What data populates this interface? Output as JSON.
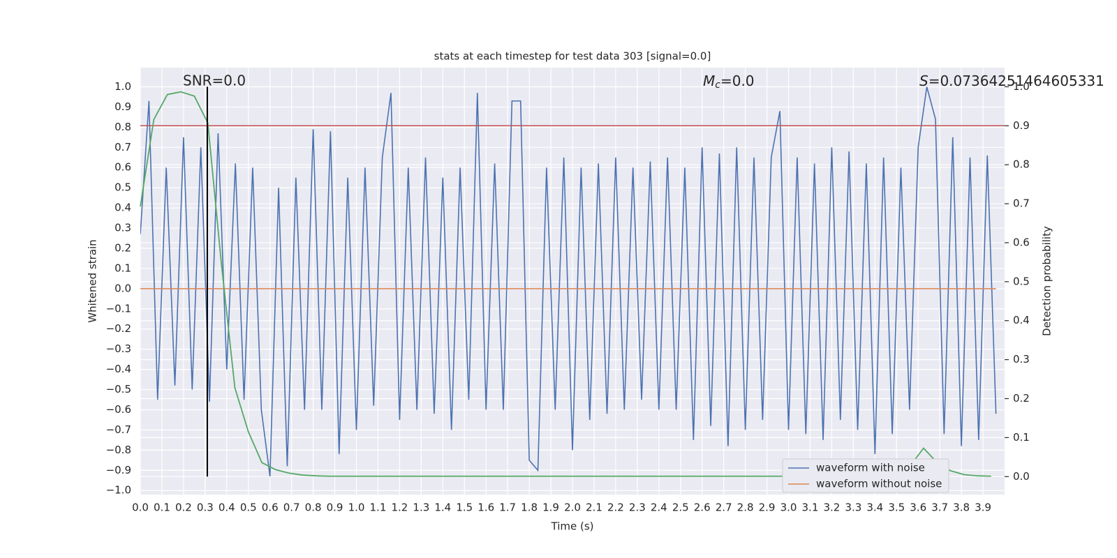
{
  "chart_data": {
    "type": "line",
    "title": "stats at each timestep for test data 303 [signal=0.0]",
    "x_label": "Time (s)",
    "y_label": "Whitened strain",
    "y2_label": "Detection probability",
    "background": "#eaeaf2",
    "grid": true,
    "legend_position": "lower right",
    "xlim": [
      0,
      4.0
    ],
    "ylim": [
      -1.02,
      1.095
    ],
    "y2lim": [
      -0.046,
      1.049
    ],
    "xticks": [
      {
        "value": 0,
        "label": "0.0"
      },
      {
        "value": 0.1,
        "label": "0.1"
      },
      {
        "value": 0.2,
        "label": "0.2"
      },
      {
        "value": 0.3,
        "label": "0.3"
      },
      {
        "value": 0.4,
        "label": "0.4"
      },
      {
        "value": 0.5,
        "label": "0.5"
      },
      {
        "value": 0.6,
        "label": "0.6"
      },
      {
        "value": 0.7,
        "label": "0.7"
      },
      {
        "value": 0.8,
        "label": "0.8"
      },
      {
        "value": 0.9,
        "label": "0.9"
      },
      {
        "value": 1.0,
        "label": "1.0"
      },
      {
        "value": 1.1,
        "label": "1.1"
      },
      {
        "value": 1.2,
        "label": "1.2"
      },
      {
        "value": 1.3,
        "label": "1.3"
      },
      {
        "value": 1.4,
        "label": "1.4"
      },
      {
        "value": 1.5,
        "label": "1.5"
      },
      {
        "value": 1.6,
        "label": "1.6"
      },
      {
        "value": 1.7,
        "label": "1.7"
      },
      {
        "value": 1.8,
        "label": "1.8"
      },
      {
        "value": 1.9,
        "label": "1.9"
      },
      {
        "value": 2.0,
        "label": "2.0"
      },
      {
        "value": 2.1,
        "label": "2.1"
      },
      {
        "value": 2.2,
        "label": "2.2"
      },
      {
        "value": 2.3,
        "label": "2.3"
      },
      {
        "value": 2.4,
        "label": "2.4"
      },
      {
        "value": 2.5,
        "label": "2.5"
      },
      {
        "value": 2.6,
        "label": "2.6"
      },
      {
        "value": 2.7,
        "label": "2.7"
      },
      {
        "value": 2.8,
        "label": "2.8"
      },
      {
        "value": 2.9,
        "label": "2.9"
      },
      {
        "value": 3.0,
        "label": "3.0"
      },
      {
        "value": 3.1,
        "label": "3.1"
      },
      {
        "value": 3.2,
        "label": "3.2"
      },
      {
        "value": 3.3,
        "label": "3.3"
      },
      {
        "value": 3.4,
        "label": "3.4"
      },
      {
        "value": 3.5,
        "label": "3.5"
      },
      {
        "value": 3.6,
        "label": "3.6"
      },
      {
        "value": 3.7,
        "label": "3.7"
      },
      {
        "value": 3.8,
        "label": "3.8"
      },
      {
        "value": 3.9,
        "label": "3.9"
      }
    ],
    "yticks": [
      {
        "value": -1.0,
        "label": "−1.0"
      },
      {
        "value": -0.9,
        "label": "−0.9"
      },
      {
        "value": -0.8,
        "label": "−0.8"
      },
      {
        "value": -0.7,
        "label": "−0.7"
      },
      {
        "value": -0.6,
        "label": "−0.6"
      },
      {
        "value": -0.5,
        "label": "−0.5"
      },
      {
        "value": -0.4,
        "label": "−0.4"
      },
      {
        "value": -0.3,
        "label": "−0.3"
      },
      {
        "value": -0.2,
        "label": "−0.2"
      },
      {
        "value": -0.1,
        "label": "−0.1"
      },
      {
        "value": 0,
        "label": "0.0"
      },
      {
        "value": 0.1,
        "label": "0.1"
      },
      {
        "value": 0.2,
        "label": "0.2"
      },
      {
        "value": 0.3,
        "label": "0.3"
      },
      {
        "value": 0.4,
        "label": "0.4"
      },
      {
        "value": 0.5,
        "label": "0.5"
      },
      {
        "value": 0.6,
        "label": "0.6"
      },
      {
        "value": 0.7,
        "label": "0.7"
      },
      {
        "value": 0.8,
        "label": "0.8"
      },
      {
        "value": 0.9,
        "label": "0.9"
      },
      {
        "value": 1.0,
        "label": "1.0"
      }
    ],
    "y2ticks": [
      {
        "value": 0,
        "label": "0.0"
      },
      {
        "value": 0.1,
        "label": "0.1"
      },
      {
        "value": 0.2,
        "label": "0.2"
      },
      {
        "value": 0.3,
        "label": "0.3"
      },
      {
        "value": 0.4,
        "label": "0.4"
      },
      {
        "value": 0.5,
        "label": "0.5"
      },
      {
        "value": 0.6,
        "label": "0.6"
      },
      {
        "value": 0.7,
        "label": "0.7"
      },
      {
        "value": 0.8,
        "label": "0.8"
      },
      {
        "value": 0.9,
        "label": "0.9"
      },
      {
        "value": 1.0,
        "label": "1.0"
      }
    ],
    "x": [
      0,
      0.04,
      0.08,
      0.12,
      0.16,
      0.2,
      0.24,
      0.28,
      0.32,
      0.36,
      0.4,
      0.44,
      0.48,
      0.52,
      0.56,
      0.6,
      0.64,
      0.68,
      0.72,
      0.76,
      0.8,
      0.84,
      0.88,
      0.92,
      0.96,
      1.0,
      1.04,
      1.08,
      1.12,
      1.16,
      1.2,
      1.24,
      1.28,
      1.32,
      1.36,
      1.4,
      1.44,
      1.48,
      1.52,
      1.56,
      1.6,
      1.64,
      1.68,
      1.72,
      1.76,
      1.8,
      1.84,
      1.88,
      1.92,
      1.96,
      2.0,
      2.04,
      2.08,
      2.12,
      2.16,
      2.2,
      2.24,
      2.28,
      2.32,
      2.36,
      2.4,
      2.44,
      2.48,
      2.52,
      2.56,
      2.6,
      2.64,
      2.68,
      2.72,
      2.76,
      2.8,
      2.84,
      2.88,
      2.92,
      2.96,
      3.0,
      3.04,
      3.08,
      3.12,
      3.16,
      3.2,
      3.24,
      3.28,
      3.32,
      3.36,
      3.4,
      3.44,
      3.48,
      3.52,
      3.56,
      3.6,
      3.64,
      3.68,
      3.72,
      3.76,
      3.8,
      3.84,
      3.88,
      3.92,
      3.96
    ],
    "series": [
      {
        "name": "waveform with noise",
        "color": "#4c72b0",
        "values": [
          0.27,
          0.93,
          -0.55,
          0.6,
          -0.48,
          0.75,
          -0.5,
          0.7,
          -0.56,
          0.77,
          -0.4,
          0.62,
          -0.55,
          0.6,
          -0.6,
          -0.93,
          0.5,
          -0.88,
          0.55,
          -0.6,
          0.79,
          -0.6,
          0.78,
          -0.82,
          0.55,
          -0.7,
          0.6,
          -0.58,
          0.65,
          0.97,
          -0.65,
          0.6,
          -0.6,
          0.65,
          -0.62,
          0.55,
          -0.7,
          0.6,
          -0.55,
          0.97,
          -0.6,
          0.62,
          -0.6,
          0.93,
          0.93,
          -0.85,
          -0.9,
          0.6,
          -0.6,
          0.65,
          -0.8,
          0.6,
          -0.65,
          0.62,
          -0.62,
          0.65,
          -0.6,
          0.6,
          -0.55,
          0.63,
          -0.6,
          0.65,
          -0.6,
          0.6,
          -0.75,
          0.7,
          -0.68,
          0.67,
          -0.78,
          0.7,
          -0.7,
          0.65,
          -0.65,
          0.65,
          0.88,
          -0.7,
          0.65,
          -0.72,
          0.62,
          -0.75,
          0.7,
          -0.65,
          0.68,
          -0.7,
          0.62,
          -0.82,
          0.65,
          -0.72,
          0.6,
          -0.6,
          0.7,
          1.0,
          0.84,
          -0.72,
          0.75,
          -0.78,
          0.65,
          -0.75,
          0.66,
          -0.62
        ]
      },
      {
        "name": "waveform without noise",
        "color": "#dd8452",
        "values": [
          0,
          0,
          0,
          0,
          0,
          0,
          0,
          0,
          0,
          0,
          0,
          0,
          0,
          0,
          0,
          0,
          0,
          0,
          0,
          0,
          0,
          0,
          0,
          0,
          0,
          0,
          0,
          0,
          0,
          0,
          0,
          0,
          0,
          0,
          0,
          0,
          0,
          0,
          0,
          0,
          0,
          0,
          0,
          0,
          0,
          0,
          0,
          0,
          0,
          0,
          0,
          0,
          0,
          0,
          0,
          0,
          0,
          0,
          0,
          0,
          0,
          0,
          0,
          0,
          0,
          0,
          0,
          0,
          0,
          0,
          0,
          0,
          0,
          0,
          0,
          0,
          0,
          0,
          0,
          0,
          0,
          0,
          0,
          0,
          0,
          0,
          0,
          0,
          0,
          0,
          0,
          0,
          0,
          0,
          0,
          0,
          0,
          0,
          0,
          0
        ]
      }
    ],
    "detection_probability": {
      "axis": "y2",
      "color": "#55a868",
      "x": [
        0,
        0.0625,
        0.125,
        0.1875,
        0.25,
        0.3125,
        0.375,
        0.4375,
        0.5,
        0.5625,
        0.625,
        0.6875,
        0.75,
        0.8125,
        0.875,
        0.9375,
        1,
        1.0625,
        1.125,
        1.1875,
        1.25,
        1.3125,
        1.375,
        1.4375,
        1.5,
        1.5625,
        1.625,
        1.6875,
        1.75,
        1.8125,
        1.875,
        1.9375,
        2,
        2.0625,
        2.125,
        2.1875,
        2.25,
        2.3125,
        2.375,
        2.4375,
        2.5,
        2.5625,
        2.625,
        2.6875,
        2.75,
        2.8125,
        2.875,
        2.9375,
        3,
        3.0625,
        3.125,
        3.1875,
        3.25,
        3.3125,
        3.375,
        3.4375,
        3.5,
        3.5625,
        3.625,
        3.6875,
        3.75,
        3.8125,
        3.875,
        3.9375
      ],
      "values": [
        0.693,
        0.916,
        0.98,
        0.987,
        0.976,
        0.907,
        0.547,
        0.228,
        0.115,
        0.036,
        0.018,
        0.009,
        0.004,
        0.002,
        0.001,
        0.001,
        0.001,
        0.001,
        0.001,
        0.001,
        0.001,
        0.001,
        0.001,
        0.001,
        0.001,
        0.001,
        0.001,
        0.001,
        0.001,
        0.001,
        0.001,
        0.001,
        0.001,
        0.001,
        0.001,
        0.001,
        0.001,
        0.001,
        0.001,
        0.001,
        0.001,
        0.001,
        0.001,
        0.001,
        0.001,
        0.001,
        0.001,
        0.001,
        0.001,
        0.001,
        0.001,
        0.001,
        0.001,
        0.001,
        0.001,
        0.001,
        0.002,
        0.027,
        0.073,
        0.036,
        0.015,
        0.005,
        0.002,
        0.001
      ]
    },
    "threshold_line": {
      "axis": "y2",
      "value": 0.9,
      "color": "#c44e52"
    },
    "marker_line": {
      "axis": "y2",
      "x": 0.31,
      "range": [
        0,
        1
      ],
      "color": "#000000"
    },
    "snr_label": "SNR=0.0",
    "mc_label": {
      "symbol": "M",
      "subscript": "c",
      "text": "=0.0"
    },
    "s_label": {
      "symbol": "S",
      "text": "=0.07364251464605331"
    }
  }
}
